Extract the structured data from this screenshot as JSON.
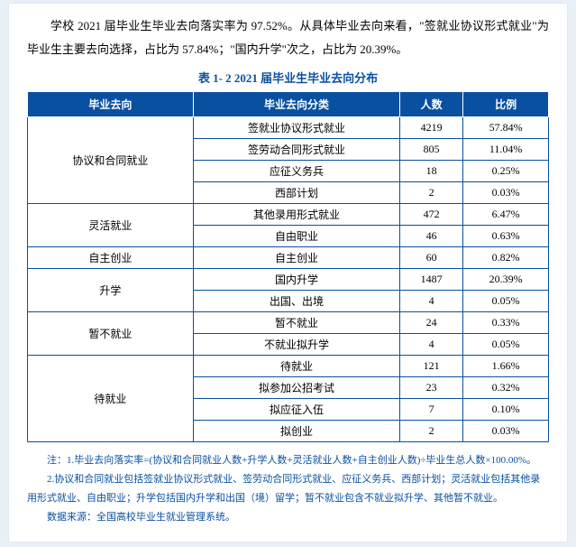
{
  "intro": "学校 2021 届毕业生毕业去向落实率为 97.52%。从具体毕业去向来看，\"签就业协议形式就业\"为毕业生主要去向选择，占比为 57.84%；\"国内升学\"次之，占比为 20.39%。",
  "caption": "表 1- 2    2021 届毕业生毕业去向分布",
  "table": {
    "headers": [
      "毕业去向",
      "毕业去向分类",
      "人数",
      "比例"
    ],
    "groups": [
      {
        "name": "协议和合同就业",
        "rows": [
          {
            "sub": "签就业协议形式就业",
            "count": "4219",
            "pct": "57.84%"
          },
          {
            "sub": "签劳动合同形式就业",
            "count": "805",
            "pct": "11.04%"
          },
          {
            "sub": "应征义务兵",
            "count": "18",
            "pct": "0.25%"
          },
          {
            "sub": "西部计划",
            "count": "2",
            "pct": "0.03%"
          }
        ]
      },
      {
        "name": "灵活就业",
        "rows": [
          {
            "sub": "其他录用形式就业",
            "count": "472",
            "pct": "6.47%"
          },
          {
            "sub": "自由职业",
            "count": "46",
            "pct": "0.63%"
          }
        ]
      },
      {
        "name": "自主创业",
        "rows": [
          {
            "sub": "自主创业",
            "count": "60",
            "pct": "0.82%"
          }
        ]
      },
      {
        "name": "升学",
        "rows": [
          {
            "sub": "国内升学",
            "count": "1487",
            "pct": "20.39%"
          },
          {
            "sub": "出国、出境",
            "count": "4",
            "pct": "0.05%"
          }
        ]
      },
      {
        "name": "暂不就业",
        "rows": [
          {
            "sub": "暂不就业",
            "count": "24",
            "pct": "0.33%"
          },
          {
            "sub": "不就业拟升学",
            "count": "4",
            "pct": "0.05%"
          }
        ]
      },
      {
        "name": "待就业",
        "rows": [
          {
            "sub": "待就业",
            "count": "121",
            "pct": "1.66%"
          },
          {
            "sub": "拟参加公招考试",
            "count": "23",
            "pct": "0.32%"
          },
          {
            "sub": "拟应征入伍",
            "count": "7",
            "pct": "0.10%"
          },
          {
            "sub": "拟创业",
            "count": "2",
            "pct": "0.03%"
          }
        ]
      }
    ]
  },
  "notes": [
    "注：1.毕业去向落实率=(协议和合同就业人数+升学人数+灵活就业人数+自主创业人数)÷毕业生总人数×100.00%。",
    "2.协议和合同就业包括签就业协议形式就业、签劳动合同形式就业、应征义务兵、西部计划；灵活就业包括其他录用形式就业、自由职业；升学包括国内升学和出国（境）留学；暂不就业包含不就业拟升学、其他暂不就业。",
    "数据来源：全国高校毕业生就业管理系统。"
  ]
}
